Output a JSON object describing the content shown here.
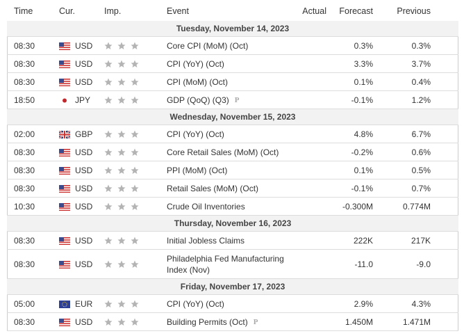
{
  "header": {
    "columns": [
      "Time",
      "Cur.",
      "Imp.",
      "Event",
      "Actual",
      "Forecast",
      "Previous"
    ]
  },
  "days": [
    {
      "date": "Tuesday, November 14, 2023",
      "events": [
        {
          "time": "08:30",
          "currency": "USD",
          "event": "Core CPI (MoM) (Oct)",
          "forecast": "0.3%",
          "previous": "0.3%"
        },
        {
          "time": "08:30",
          "currency": "USD",
          "event": "CPI (YoY) (Oct)",
          "forecast": "3.3%",
          "previous": "3.7%"
        },
        {
          "time": "08:30",
          "currency": "USD",
          "event": "CPI (MoM) (Oct)",
          "forecast": "0.1%",
          "previous": "0.4%"
        },
        {
          "time": "18:50",
          "currency": "JPY",
          "event": "GDP (QoQ) (Q3)",
          "preliminary": true,
          "forecast": "-0.1%",
          "previous": "1.2%"
        }
      ]
    },
    {
      "date": "Wednesday, November 15, 2023",
      "events": [
        {
          "time": "02:00",
          "currency": "GBP",
          "event": "CPI (YoY) (Oct)",
          "forecast": "4.8%",
          "previous": "6.7%"
        },
        {
          "time": "08:30",
          "currency": "USD",
          "event": "Core Retail Sales (MoM) (Oct)",
          "forecast": "-0.2%",
          "previous": "0.6%"
        },
        {
          "time": "08:30",
          "currency": "USD",
          "event": "PPI (MoM) (Oct)",
          "forecast": "0.1%",
          "previous": "0.5%"
        },
        {
          "time": "08:30",
          "currency": "USD",
          "event": "Retail Sales (MoM) (Oct)",
          "forecast": "-0.1%",
          "previous": "0.7%"
        },
        {
          "time": "10:30",
          "currency": "USD",
          "event": "Crude Oil Inventories",
          "forecast": "-0.300M",
          "previous": "0.774M"
        }
      ]
    },
    {
      "date": "Thursday, November 16, 2023",
      "events": [
        {
          "time": "08:30",
          "currency": "USD",
          "event": "Initial Jobless Claims",
          "forecast": "222K",
          "previous": "217K"
        },
        {
          "time": "08:30",
          "currency": "USD",
          "event": "Philadelphia Fed Manufacturing Index (Nov)",
          "forecast": "-11.0",
          "previous": "-9.0"
        }
      ]
    },
    {
      "date": "Friday, November 17, 2023",
      "events": [
        {
          "time": "05:00",
          "currency": "EUR",
          "event": "CPI (YoY) (Oct)",
          "forecast": "2.9%",
          "previous": "4.3%"
        },
        {
          "time": "08:30",
          "currency": "USD",
          "event": "Building Permits (Oct)",
          "preliminary": true,
          "forecast": "1.450M",
          "previous": "1.471M"
        }
      ]
    }
  ]
}
